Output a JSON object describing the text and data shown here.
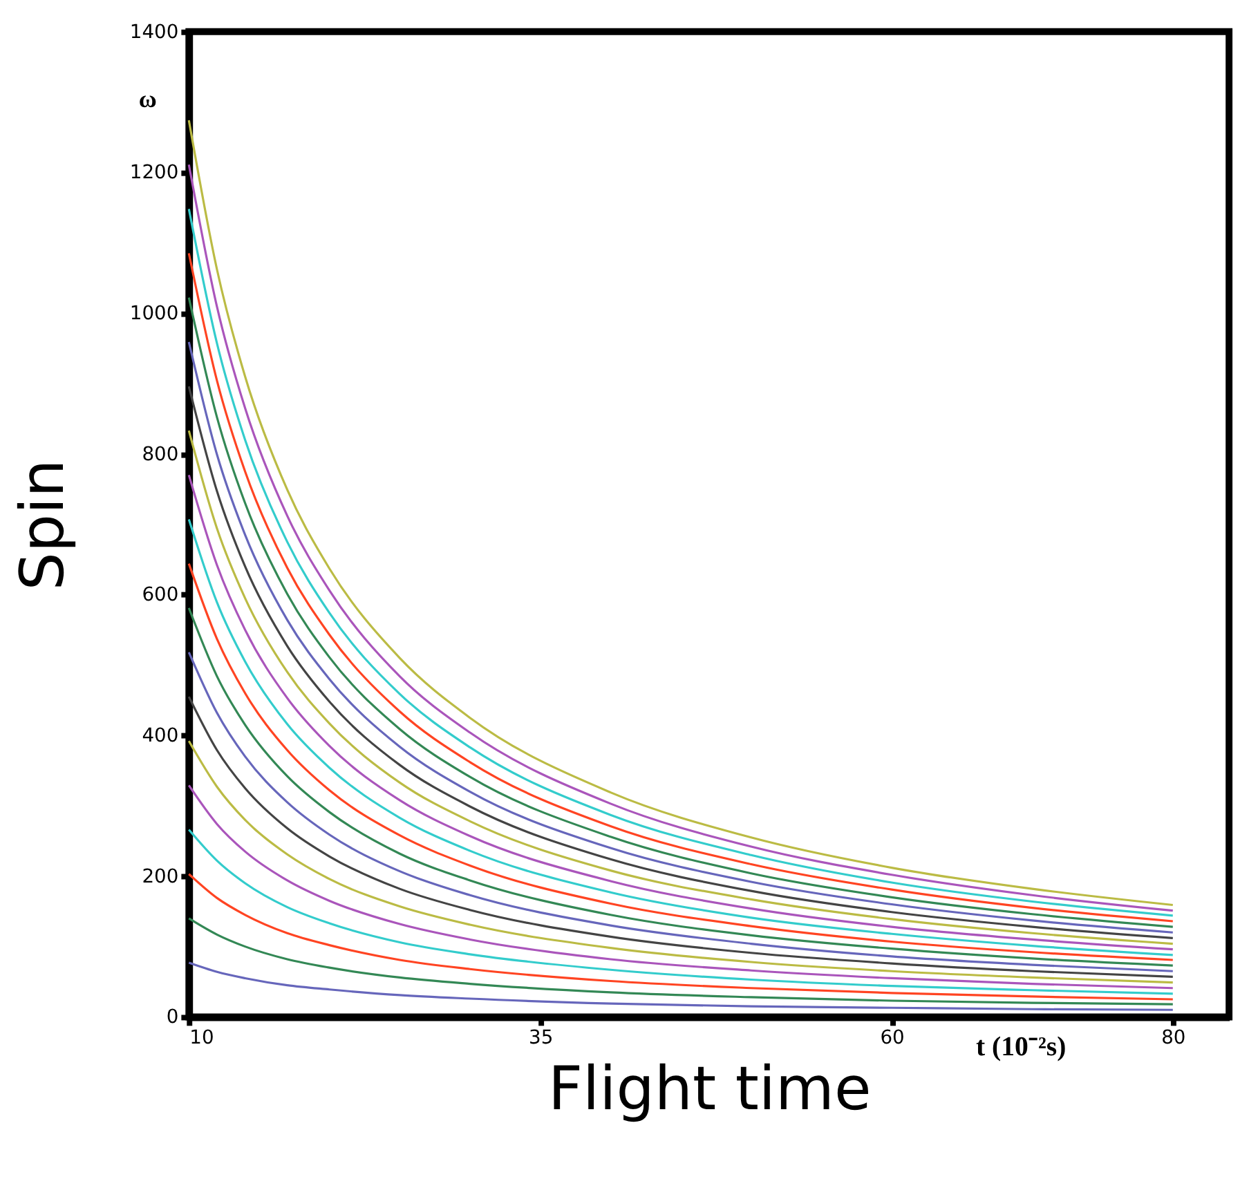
{
  "chart_data": {
    "type": "line",
    "xlabel": "Flight time",
    "ylabel": "Spin",
    "annotations": [
      "ω",
      "t (10⁻²s)"
    ],
    "x": [
      10,
      12,
      14,
      17,
      20,
      25,
      30,
      40,
      50,
      60,
      70,
      80
    ],
    "xlim": [
      10,
      84
    ],
    "xticks": [
      10,
      35,
      60,
      80
    ],
    "ylim": [
      0,
      1400
    ],
    "yticks": [
      0,
      200,
      400,
      600,
      800,
      1000,
      1200,
      1400
    ],
    "grid": false,
    "legend": false,
    "marker": "none",
    "line_style": "solid",
    "series": [
      {
        "color": "#6666bb",
        "values": [
          77,
          64,
          55,
          45,
          39,
          31,
          26,
          19,
          15,
          13,
          11,
          10
        ]
      },
      {
        "color": "#338855",
        "values": [
          140,
          117,
          100,
          82,
          70,
          56,
          47,
          35,
          28,
          23,
          20,
          18
        ]
      },
      {
        "color": "#ff4422",
        "values": [
          203,
          169,
          145,
          119,
          102,
          81,
          68,
          51,
          41,
          34,
          29,
          25
        ]
      },
      {
        "color": "#33cccc",
        "values": [
          266,
          222,
          190,
          156,
          133,
          106,
          89,
          67,
          53,
          44,
          38,
          33
        ]
      },
      {
        "color": "#aa55bb",
        "values": [
          329,
          274,
          235,
          194,
          165,
          132,
          110,
          82,
          66,
          55,
          47,
          41
        ]
      },
      {
        "color": "#bbbb44",
        "values": [
          392,
          327,
          280,
          231,
          196,
          157,
          131,
          98,
          78,
          65,
          56,
          49
        ]
      },
      {
        "color": "#444444",
        "values": [
          455,
          379,
          325,
          268,
          228,
          182,
          152,
          114,
          91,
          76,
          65,
          57
        ]
      },
      {
        "color": "#6666bb",
        "values": [
          518,
          432,
          370,
          305,
          259,
          207,
          173,
          130,
          104,
          86,
          74,
          65
        ]
      },
      {
        "color": "#338855",
        "values": [
          581,
          484,
          415,
          342,
          291,
          232,
          194,
          145,
          116,
          97,
          83,
          73
        ]
      },
      {
        "color": "#ff4422",
        "values": [
          644,
          537,
          460,
          379,
          322,
          258,
          215,
          161,
          129,
          107,
          92,
          81
        ]
      },
      {
        "color": "#33cccc",
        "values": [
          707,
          589,
          505,
          416,
          354,
          283,
          236,
          177,
          141,
          118,
          101,
          88
        ]
      },
      {
        "color": "#aa55bb",
        "values": [
          770,
          642,
          550,
          453,
          385,
          308,
          257,
          193,
          154,
          128,
          110,
          96
        ]
      },
      {
        "color": "#bbbb44",
        "values": [
          833,
          694,
          595,
          490,
          417,
          333,
          278,
          208,
          167,
          139,
          119,
          104
        ]
      },
      {
        "color": "#444444",
        "values": [
          896,
          747,
          640,
          527,
          448,
          358,
          299,
          224,
          179,
          149,
          128,
          112
        ]
      },
      {
        "color": "#6666bb",
        "values": [
          959,
          799,
          685,
          564,
          480,
          384,
          320,
          240,
          192,
          160,
          137,
          120
        ]
      },
      {
        "color": "#338855",
        "values": [
          1022,
          852,
          730,
          601,
          511,
          409,
          341,
          256,
          204,
          170,
          146,
          128
        ]
      },
      {
        "color": "#ff4422",
        "values": [
          1085,
          904,
          775,
          638,
          543,
          434,
          362,
          271,
          217,
          181,
          155,
          136
        ]
      },
      {
        "color": "#33cccc",
        "values": [
          1148,
          957,
          820,
          675,
          574,
          459,
          383,
          287,
          230,
          191,
          164,
          144
        ]
      },
      {
        "color": "#aa55bb",
        "values": [
          1211,
          1009,
          865,
          712,
          606,
          484,
          404,
          303,
          242,
          202,
          173,
          151
        ]
      },
      {
        "color": "#bbbb44",
        "values": [
          1274,
          1062,
          910,
          749,
          637,
          510,
          425,
          319,
          255,
          212,
          182,
          159
        ]
      }
    ]
  }
}
